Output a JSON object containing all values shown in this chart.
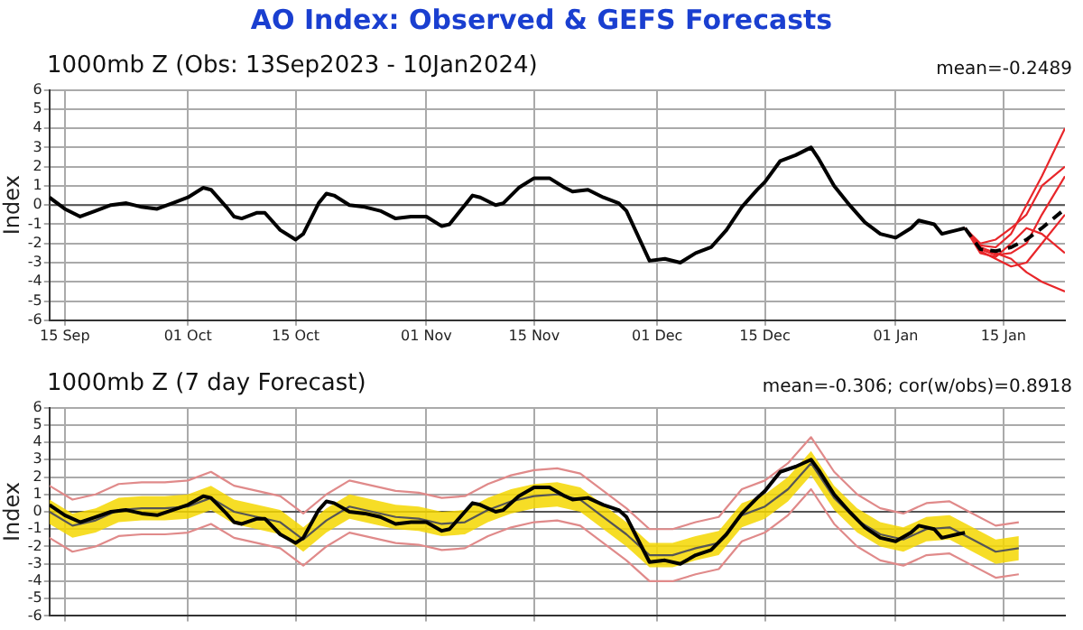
{
  "chart_data": [
    {
      "type": "line",
      "title": "AO Index: Observed & GEFS Forecasts",
      "subtitle": "1000mb Z (Obs: 13Sep2023 - 10Jan2024)",
      "ylabel": "Index",
      "annotations": [
        "mean=-0.2489"
      ],
      "marker": "none",
      "grid": true,
      "xlim": [
        "2023-09-13",
        "2024-01-23"
      ],
      "xticks": [
        {
          "value": "2023-09-15",
          "label": "15 Sep"
        },
        {
          "value": "2023-10-01",
          "label": "01 Oct"
        },
        {
          "value": "2023-10-15",
          "label": "15 Oct"
        },
        {
          "value": "2023-11-01",
          "label": "01 Nov"
        },
        {
          "value": "2023-11-15",
          "label": "15 Nov"
        },
        {
          "value": "2023-12-01",
          "label": "01 Dec"
        },
        {
          "value": "2023-12-15",
          "label": "15 Dec"
        },
        {
          "value": "2024-01-01",
          "label": "01 Jan"
        },
        {
          "value": "2024-01-15",
          "label": "15 Jan"
        }
      ],
      "ylim": [
        -6,
        6
      ],
      "yticks": [
        -6,
        -5,
        -4,
        -3,
        -2,
        -1,
        0,
        1,
        2,
        3,
        4,
        5,
        6
      ],
      "ref_lines": [
        {
          "axis": "y",
          "value": 0,
          "color": "#555555"
        }
      ],
      "series": [
        {
          "color": "#e8262a",
          "x": [
            "2024-01-10",
            "2024-01-12",
            "2024-01-14",
            "2024-01-16",
            "2024-01-18",
            "2024-01-20",
            "2024-01-23"
          ],
          "values": [
            -1.2,
            -2.1,
            -2.2,
            -1.5,
            0.0,
            1.5,
            4.0
          ]
        },
        {
          "color": "#e8262a",
          "x": [
            "2024-01-10",
            "2024-01-12",
            "2024-01-14",
            "2024-01-16",
            "2024-01-18",
            "2024-01-20",
            "2024-01-23"
          ],
          "values": [
            -1.2,
            -2.3,
            -2.6,
            -2.5,
            -2.0,
            -0.5,
            1.5
          ]
        },
        {
          "color": "#e8262a",
          "x": [
            "2024-01-10",
            "2024-01-12",
            "2024-01-14",
            "2024-01-16",
            "2024-01-18",
            "2024-01-20",
            "2024-01-23"
          ],
          "values": [
            -1.2,
            -2.4,
            -2.8,
            -3.2,
            -3.0,
            -2.0,
            -0.5
          ]
        },
        {
          "color": "#e8262a",
          "x": [
            "2024-01-10",
            "2024-01-12",
            "2024-01-14",
            "2024-01-16",
            "2024-01-18",
            "2024-01-20",
            "2024-01-23"
          ],
          "values": [
            -1.2,
            -2.2,
            -2.5,
            -2.8,
            -3.5,
            -4.0,
            -4.5
          ]
        },
        {
          "color": "#e8262a",
          "x": [
            "2024-01-10",
            "2024-01-12",
            "2024-01-14",
            "2024-01-16",
            "2024-01-18",
            "2024-01-20",
            "2024-01-23"
          ],
          "values": [
            -1.2,
            -2.0,
            -1.8,
            -1.2,
            -0.5,
            1.0,
            2.0
          ]
        },
        {
          "color": "#e8262a",
          "x": [
            "2024-01-10",
            "2024-01-12",
            "2024-01-14",
            "2024-01-16",
            "2024-01-18",
            "2024-01-20",
            "2024-01-23"
          ],
          "values": [
            -1.2,
            -2.5,
            -2.7,
            -2.0,
            -1.2,
            -1.5,
            -2.5
          ]
        },
        {
          "color": "#000000",
          "line_style": "dashed",
          "x": [
            "2024-01-10",
            "2024-01-12",
            "2024-01-14",
            "2024-01-16",
            "2024-01-18",
            "2024-01-20",
            "2024-01-23"
          ],
          "values": [
            -1.2,
            -2.3,
            -2.4,
            -2.2,
            -1.8,
            -1.2,
            -0.2
          ]
        },
        {
          "color": "#000000",
          "x": [
            "2023-09-13",
            "2023-09-15",
            "2023-09-17",
            "2023-09-19",
            "2023-09-21",
            "2023-09-23",
            "2023-09-25",
            "2023-09-27",
            "2023-09-29",
            "2023-10-01",
            "2023-10-03",
            "2023-10-04",
            "2023-10-06",
            "2023-10-07",
            "2023-10-08",
            "2023-10-10",
            "2023-10-11",
            "2023-10-13",
            "2023-10-15",
            "2023-10-16",
            "2023-10-18",
            "2023-10-19",
            "2023-10-20",
            "2023-10-22",
            "2023-10-24",
            "2023-10-26",
            "2023-10-28",
            "2023-10-30",
            "2023-11-01",
            "2023-11-03",
            "2023-11-04",
            "2023-11-06",
            "2023-11-07",
            "2023-11-08",
            "2023-11-10",
            "2023-11-11",
            "2023-11-13",
            "2023-11-15",
            "2023-11-17",
            "2023-11-19",
            "2023-11-20",
            "2023-11-22",
            "2023-11-24",
            "2023-11-26",
            "2023-11-27",
            "2023-11-30",
            "2023-12-02",
            "2023-12-04",
            "2023-12-06",
            "2023-12-08",
            "2023-12-10",
            "2023-12-12",
            "2023-12-14",
            "2023-12-15",
            "2023-12-17",
            "2023-12-19",
            "2023-12-21",
            "2023-12-22",
            "2023-12-24",
            "2023-12-26",
            "2023-12-28",
            "2023-12-30",
            "2024-01-01",
            "2024-01-03",
            "2024-01-04",
            "2024-01-06",
            "2024-01-07",
            "2024-01-09",
            "2024-01-10"
          ],
          "values": [
            0.4,
            -0.2,
            -0.6,
            -0.3,
            0.0,
            0.1,
            -0.1,
            -0.2,
            0.1,
            0.4,
            0.9,
            0.8,
            -0.1,
            -0.6,
            -0.7,
            -0.4,
            -0.4,
            -1.3,
            -1.8,
            -1.5,
            0.1,
            0.6,
            0.5,
            0.0,
            -0.1,
            -0.3,
            -0.7,
            -0.6,
            -0.6,
            -1.1,
            -1.0,
            0.0,
            0.5,
            0.4,
            0.0,
            0.1,
            0.9,
            1.4,
            1.4,
            0.9,
            0.7,
            0.8,
            0.4,
            0.1,
            -0.3,
            -2.9,
            -2.8,
            -3.0,
            -2.5,
            -2.2,
            -1.3,
            -0.1,
            0.8,
            1.2,
            2.3,
            2.6,
            3.0,
            2.4,
            1.0,
            0.0,
            -0.9,
            -1.5,
            -1.7,
            -1.2,
            -0.8,
            -1.0,
            -1.5,
            -1.3,
            -1.2
          ]
        }
      ]
    },
    {
      "type": "line",
      "title": "1000mb Z (7 day Forecast)",
      "ylabel": "Index",
      "annotations": [
        "mean=-0.306; cor(w/obs)=0.8918"
      ],
      "marker": "none",
      "grid": true,
      "tick_labels": "y",
      "xlim": [
        "2023-09-13",
        "2024-01-23"
      ],
      "xticks": [
        {
          "value": "2023-09-15",
          "label": null
        },
        {
          "value": "2023-10-01",
          "label": null
        },
        {
          "value": "2023-10-15",
          "label": null
        },
        {
          "value": "2023-11-01",
          "label": null
        },
        {
          "value": "2023-11-15",
          "label": null
        },
        {
          "value": "2023-12-01",
          "label": null
        },
        {
          "value": "2023-12-15",
          "label": null
        },
        {
          "value": "2024-01-01",
          "label": null
        },
        {
          "value": "2024-01-15",
          "label": null
        }
      ],
      "ylim": [
        -6,
        6
      ],
      "yticks": [
        -6,
        -5,
        -4,
        -3,
        -2,
        -1,
        0,
        1,
        2,
        3,
        4,
        5,
        6
      ],
      "ref_lines": [
        {
          "axis": "y",
          "value": 0,
          "color": "#555555"
        }
      ],
      "x": [
        "2023-09-13",
        "2023-09-16",
        "2023-09-19",
        "2023-09-22",
        "2023-09-25",
        "2023-09-28",
        "2023-10-01",
        "2023-10-04",
        "2023-10-07",
        "2023-10-10",
        "2023-10-13",
        "2023-10-16",
        "2023-10-19",
        "2023-10-22",
        "2023-10-25",
        "2023-10-28",
        "2023-10-31",
        "2023-11-03",
        "2023-11-06",
        "2023-11-09",
        "2023-11-12",
        "2023-11-15",
        "2023-11-18",
        "2023-11-21",
        "2023-11-24",
        "2023-11-27",
        "2023-11-30",
        "2023-12-03",
        "2023-12-06",
        "2023-12-09",
        "2023-12-12",
        "2023-12-15",
        "2023-12-18",
        "2023-12-21",
        "2023-12-24",
        "2023-12-27",
        "2023-12-30",
        "2024-01-02",
        "2024-01-05",
        "2024-01-08",
        "2024-01-11",
        "2024-01-14",
        "2024-01-17"
      ],
      "series": [
        {
          "color": "#e08a8a",
          "values": [
            -1.5,
            -2.3,
            -2.0,
            -1.4,
            -1.3,
            -1.3,
            -1.2,
            -0.7,
            -1.5,
            -1.8,
            -2.1,
            -3.1,
            -2.0,
            -1.2,
            -1.5,
            -1.8,
            -1.9,
            -2.2,
            -2.1,
            -1.4,
            -0.9,
            -0.6,
            -0.5,
            -0.8,
            -1.8,
            -2.8,
            -4.0,
            -4.0,
            -3.6,
            -3.3,
            -1.7,
            -1.2,
            -0.2,
            1.3,
            -0.7,
            -2.0,
            -2.8,
            -3.1,
            -2.5,
            -2.4,
            -3.1,
            -3.8,
            -3.6
          ]
        },
        {
          "color": "#e08a8a",
          "values": [
            1.5,
            0.7,
            1.0,
            1.6,
            1.7,
            1.7,
            1.8,
            2.3,
            1.5,
            1.2,
            0.9,
            -0.1,
            1.0,
            1.8,
            1.5,
            1.2,
            1.1,
            0.8,
            0.9,
            1.6,
            2.1,
            2.4,
            2.5,
            2.2,
            1.2,
            0.2,
            -1.0,
            -1.0,
            -0.6,
            -0.3,
            1.3,
            1.8,
            2.8,
            4.3,
            2.3,
            1.0,
            0.2,
            -0.1,
            0.5,
            0.6,
            -0.1,
            -0.8,
            -0.6
          ]
        },
        {
          "color": "#555555",
          "values": [
            0.0,
            -0.8,
            -0.5,
            0.1,
            0.2,
            0.2,
            0.3,
            0.8,
            0.0,
            -0.3,
            -0.6,
            -1.6,
            -0.5,
            0.3,
            0.0,
            -0.3,
            -0.4,
            -0.7,
            -0.6,
            0.1,
            0.6,
            0.9,
            1.0,
            0.7,
            -0.3,
            -1.3,
            -2.5,
            -2.5,
            -2.1,
            -1.8,
            -0.2,
            0.3,
            1.3,
            2.8,
            0.8,
            -0.5,
            -1.3,
            -1.6,
            -1.0,
            -0.9,
            -1.6,
            -2.3,
            -2.1
          ],
          "lower": [
            -0.7,
            -1.5,
            -1.2,
            -0.6,
            -0.5,
            -0.5,
            -0.4,
            0.1,
            -0.7,
            -1.0,
            -1.3,
            -2.3,
            -1.2,
            -0.4,
            -0.7,
            -1.0,
            -1.1,
            -1.4,
            -1.3,
            -0.6,
            -0.1,
            0.2,
            0.3,
            0.0,
            -1.0,
            -2.0,
            -3.2,
            -3.2,
            -2.8,
            -2.5,
            -0.9,
            -0.4,
            0.6,
            2.1,
            0.1,
            -1.2,
            -2.0,
            -2.3,
            -1.7,
            -1.6,
            -2.3,
            -3.0,
            -2.8
          ],
          "upper": [
            0.7,
            -0.1,
            0.2,
            0.8,
            0.9,
            0.9,
            1.0,
            1.5,
            0.7,
            0.4,
            0.1,
            -0.9,
            0.2,
            1.0,
            0.7,
            0.4,
            0.3,
            0.0,
            0.1,
            0.8,
            1.3,
            1.6,
            1.7,
            1.4,
            0.4,
            -0.6,
            -1.8,
            -1.8,
            -1.4,
            -1.1,
            0.5,
            1.0,
            2.0,
            3.5,
            1.5,
            0.2,
            -0.6,
            -0.9,
            -0.3,
            -0.2,
            -0.9,
            -1.6,
            -1.4
          ]
        },
        {
          "color": "#000000",
          "x": [
            "2023-09-13",
            "2023-09-15",
            "2023-09-17",
            "2023-09-19",
            "2023-09-21",
            "2023-09-23",
            "2023-09-25",
            "2023-09-27",
            "2023-09-29",
            "2023-10-01",
            "2023-10-03",
            "2023-10-04",
            "2023-10-06",
            "2023-10-07",
            "2023-10-08",
            "2023-10-10",
            "2023-10-11",
            "2023-10-13",
            "2023-10-15",
            "2023-10-16",
            "2023-10-18",
            "2023-10-19",
            "2023-10-20",
            "2023-10-22",
            "2023-10-24",
            "2023-10-26",
            "2023-10-28",
            "2023-10-30",
            "2023-11-01",
            "2023-11-03",
            "2023-11-04",
            "2023-11-06",
            "2023-11-07",
            "2023-11-08",
            "2023-11-10",
            "2023-11-11",
            "2023-11-13",
            "2023-11-15",
            "2023-11-17",
            "2023-11-19",
            "2023-11-20",
            "2023-11-22",
            "2023-11-24",
            "2023-11-26",
            "2023-11-27",
            "2023-11-30",
            "2023-12-02",
            "2023-12-04",
            "2023-12-06",
            "2023-12-08",
            "2023-12-10",
            "2023-12-12",
            "2023-12-14",
            "2023-12-15",
            "2023-12-17",
            "2023-12-19",
            "2023-12-21",
            "2023-12-22",
            "2023-12-24",
            "2023-12-26",
            "2023-12-28",
            "2023-12-30",
            "2024-01-01",
            "2024-01-03",
            "2024-01-04",
            "2024-01-06",
            "2024-01-07",
            "2024-01-09",
            "2024-01-10"
          ],
          "values": [
            0.4,
            -0.2,
            -0.6,
            -0.3,
            0.0,
            0.1,
            -0.1,
            -0.2,
            0.1,
            0.4,
            0.9,
            0.8,
            -0.1,
            -0.6,
            -0.7,
            -0.4,
            -0.4,
            -1.3,
            -1.8,
            -1.5,
            0.1,
            0.6,
            0.5,
            0.0,
            -0.1,
            -0.3,
            -0.7,
            -0.6,
            -0.6,
            -1.1,
            -1.0,
            0.0,
            0.5,
            0.4,
            0.0,
            0.1,
            0.9,
            1.4,
            1.4,
            0.9,
            0.7,
            0.8,
            0.4,
            0.1,
            -0.3,
            -2.9,
            -2.8,
            -3.0,
            -2.5,
            -2.2,
            -1.3,
            -0.1,
            0.8,
            1.2,
            2.3,
            2.6,
            3.0,
            2.4,
            1.0,
            0.0,
            -0.9,
            -1.5,
            -1.7,
            -1.2,
            -0.8,
            -1.0,
            -1.5,
            -1.3,
            -1.2
          ]
        }
      ]
    }
  ]
}
